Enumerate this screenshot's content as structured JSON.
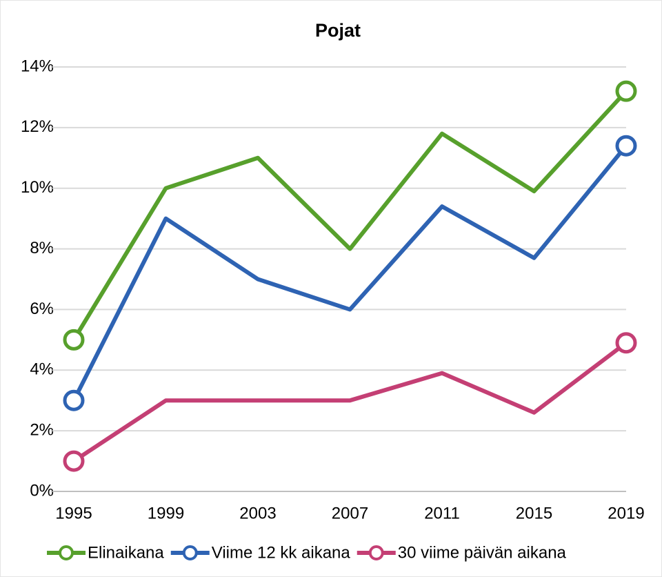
{
  "chart_data": {
    "type": "line",
    "title": "Pojat",
    "categories": [
      "1995",
      "1999",
      "2003",
      "2007",
      "2011",
      "2015",
      "2019"
    ],
    "series": [
      {
        "name": "Elinaikana",
        "color": "#57a02c",
        "values": [
          5,
          10,
          11,
          8,
          11.8,
          9.9,
          13.2
        ]
      },
      {
        "name": "Viime 12 kk aikana",
        "color": "#2e63b3",
        "values": [
          3,
          9,
          7,
          6,
          9.4,
          7.7,
          11.4
        ]
      },
      {
        "name": "30 viime päivän aikana",
        "color": "#c43f74",
        "values": [
          1,
          3,
          3,
          3,
          3.9,
          2.6,
          4.9
        ]
      }
    ],
    "ylim": [
      0,
      14
    ],
    "yticks": [
      {
        "value": 0,
        "label": "0%"
      },
      {
        "value": 2,
        "label": "2%"
      },
      {
        "value": 4,
        "label": "4%"
      },
      {
        "value": 6,
        "label": "6%"
      },
      {
        "value": 8,
        "label": "8%"
      },
      {
        "value": 10,
        "label": "10%"
      },
      {
        "value": 12,
        "label": "12%"
      },
      {
        "value": 14,
        "label": "14%"
      }
    ],
    "grid": true,
    "legend": "bottom"
  }
}
